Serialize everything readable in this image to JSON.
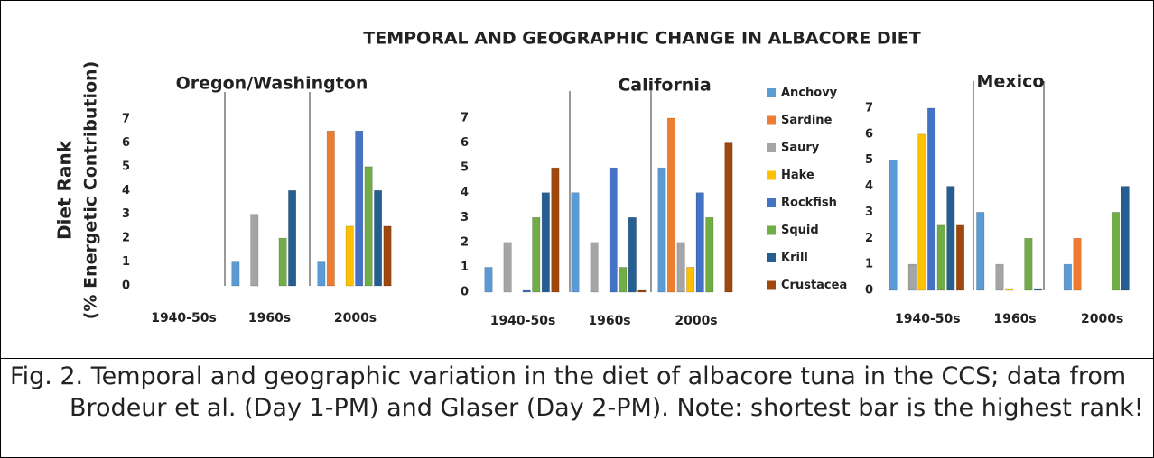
{
  "figure": {
    "title": "TEMPORAL AND GEOGRAPHIC CHANGE IN ALBACORE DIET",
    "y_label": "Diet Rank",
    "y_label_note": "(% Energetic Contribution)"
  },
  "caption": "Fig. 2. Temporal and geographic variation in the diet of albacore tuna in the CCS; data from Brodeur et al. (Day 1-PM) and Glaser (Day 2-PM). Note: shortest bar is the highest rank!",
  "chart_data": [
    {
      "type": "bar",
      "title": "Oregon/Washington",
      "categories": [
        "1940-50s",
        "1960s",
        "2000s"
      ],
      "ylim": [
        0,
        7
      ],
      "yticks": [
        0,
        1,
        2,
        3,
        4,
        5,
        6,
        7
      ],
      "series": [
        {
          "name": "Anchovy",
          "color": "#5b9bd5",
          "values": [
            null,
            1,
            1
          ]
        },
        {
          "name": "Sardine",
          "color": "#ed7d31",
          "values": [
            null,
            null,
            6.5
          ]
        },
        {
          "name": "Saury",
          "color": "#a5a5a5",
          "values": [
            null,
            3,
            null
          ]
        },
        {
          "name": "Hake",
          "color": "#ffc000",
          "values": [
            null,
            null,
            2.5
          ]
        },
        {
          "name": "Rockfish",
          "color": "#4472c4",
          "values": [
            null,
            null,
            6.5
          ]
        },
        {
          "name": "Squid",
          "color": "#70ad47",
          "values": [
            null,
            2,
            5
          ]
        },
        {
          "name": "Krill",
          "color": "#255e91",
          "values": [
            null,
            4,
            4
          ]
        },
        {
          "name": "Crustacea",
          "color": "#9e480e",
          "values": [
            null,
            null,
            2.5
          ]
        }
      ]
    },
    {
      "type": "bar",
      "title": "California",
      "categories": [
        "1940-50s",
        "1960s",
        "2000s"
      ],
      "ylim": [
        0,
        7
      ],
      "yticks": [
        0,
        1,
        2,
        3,
        4,
        5,
        6,
        7
      ],
      "series": [
        {
          "name": "Anchovy",
          "color": "#5b9bd5",
          "values": [
            1,
            4,
            5
          ]
        },
        {
          "name": "Sardine",
          "color": "#ed7d31",
          "values": [
            null,
            null,
            7
          ]
        },
        {
          "name": "Saury",
          "color": "#a5a5a5",
          "values": [
            2,
            2,
            2
          ]
        },
        {
          "name": "Hake",
          "color": "#ffc000",
          "values": [
            null,
            null,
            1
          ]
        },
        {
          "name": "Rockfish",
          "color": "#4472c4",
          "values": [
            0,
            5,
            4
          ]
        },
        {
          "name": "Squid",
          "color": "#70ad47",
          "values": [
            3,
            1,
            3
          ]
        },
        {
          "name": "Krill",
          "color": "#255e91",
          "values": [
            4,
            3,
            null
          ]
        },
        {
          "name": "Crustacea",
          "color": "#9e480e",
          "values": [
            5,
            0,
            6
          ]
        }
      ]
    },
    {
      "type": "bar",
      "title": "Mexico",
      "categories": [
        "1940-50s",
        "1960s",
        "2000s"
      ],
      "ylim": [
        0,
        7
      ],
      "yticks": [
        0,
        1,
        2,
        3,
        4,
        5,
        6,
        7
      ],
      "series": [
        {
          "name": "Anchovy",
          "color": "#5b9bd5",
          "values": [
            5,
            3,
            1
          ]
        },
        {
          "name": "Sardine",
          "color": "#ed7d31",
          "values": [
            null,
            null,
            2
          ]
        },
        {
          "name": "Saury",
          "color": "#a5a5a5",
          "values": [
            1,
            1,
            null
          ]
        },
        {
          "name": "Hake",
          "color": "#ffc000",
          "values": [
            6,
            0,
            null
          ]
        },
        {
          "name": "Rockfish",
          "color": "#4472c4",
          "values": [
            7,
            null,
            null
          ]
        },
        {
          "name": "Squid",
          "color": "#70ad47",
          "values": [
            2.5,
            2,
            3
          ]
        },
        {
          "name": "Krill",
          "color": "#255e91",
          "values": [
            4,
            0,
            4
          ]
        },
        {
          "name": "Crustacea",
          "color": "#9e480e",
          "values": [
            2.5,
            null,
            null
          ]
        }
      ]
    }
  ]
}
